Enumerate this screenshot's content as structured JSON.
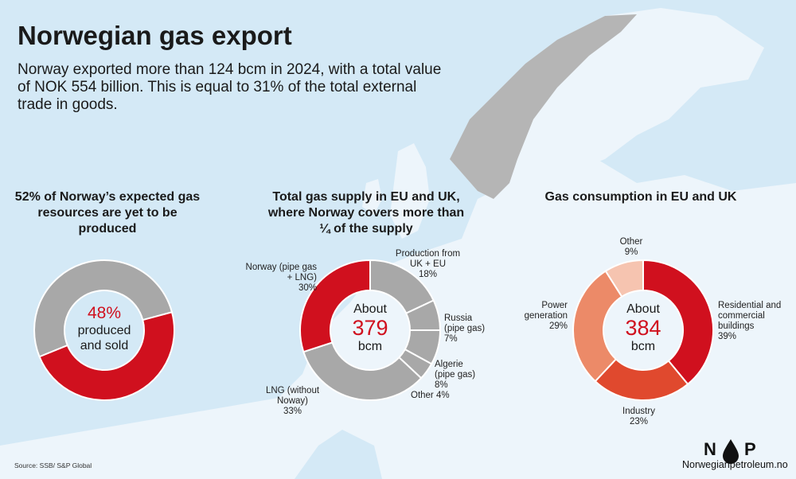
{
  "title": "Norwegian gas export",
  "subtitle": "Norway exported more than 124 bcm in 2024, with a total value of NOK 554 billion. This is equal to 31% of the total external trade in goods.",
  "source": "Source: SSB/ S&P Global",
  "logo": {
    "left": "N",
    "right": "P"
  },
  "website": "Norwegianpetroleum.no",
  "chart_data": [
    {
      "type": "pie",
      "donut": true,
      "title": "52% of Norway’s expected gas resources are yet to be produced",
      "categories": [
        "produced and sold",
        null
      ],
      "values": [
        48,
        52
      ],
      "value_labels": [
        "48%",
        null
      ],
      "colors": [
        "#d0101e",
        "#a8a8a8"
      ]
    },
    {
      "type": "pie",
      "donut": true,
      "title": "Total gas supply in EU and UK, where Norway covers more than ¼ of the supply",
      "center_prefix": "About",
      "total": 379,
      "center_unit": "bcm",
      "categories": [
        "Production from UK + EU",
        "Russia (pipe gas)",
        "Algerie (pipe gas)",
        "Other",
        "LNG (without Noway)",
        "Norway (pipe gas + LNG)"
      ],
      "values": [
        18,
        7,
        8,
        4,
        33,
        30
      ],
      "value_labels": [
        "18%",
        "7%",
        "8%",
        "4%",
        "33%",
        "30%"
      ],
      "colors": [
        "#a8a8a8",
        "#a8a8a8",
        "#a8a8a8",
        "#a8a8a8",
        "#a8a8a8",
        "#d0101e"
      ]
    },
    {
      "type": "pie",
      "donut": true,
      "title": "Gas consumption in EU and UK",
      "center_prefix": "About",
      "total": 384,
      "center_unit": "bcm",
      "categories": [
        "Residential and commercial buildings",
        "Industry",
        "Power generation",
        "Other"
      ],
      "values": [
        39,
        23,
        29,
        9
      ],
      "value_labels": [
        "39%",
        "23%",
        "29%",
        "9%"
      ],
      "colors": [
        "#d0101e",
        "#e0492e",
        "#ec8a68",
        "#f6c4b0"
      ]
    }
  ]
}
